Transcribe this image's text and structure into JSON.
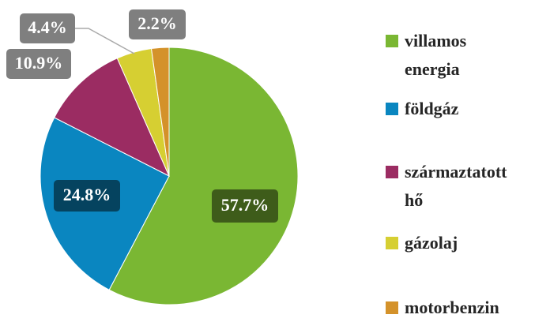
{
  "chart_data": {
    "type": "pie",
    "categories": [
      "villamos energia",
      "földgáz",
      "származtatott hő",
      "gázolaj",
      "motorbenzin"
    ],
    "values": [
      57.7,
      24.8,
      10.9,
      4.4,
      2.2
    ],
    "value_labels": [
      "57.7%",
      "24.8%",
      "10.9%",
      "4.4%",
      "2.2%"
    ],
    "colors": [
      "#7ab733",
      "#0a86c0",
      "#9b2c62",
      "#d6cf32",
      "#d4922a"
    ],
    "legend": "right"
  }
}
